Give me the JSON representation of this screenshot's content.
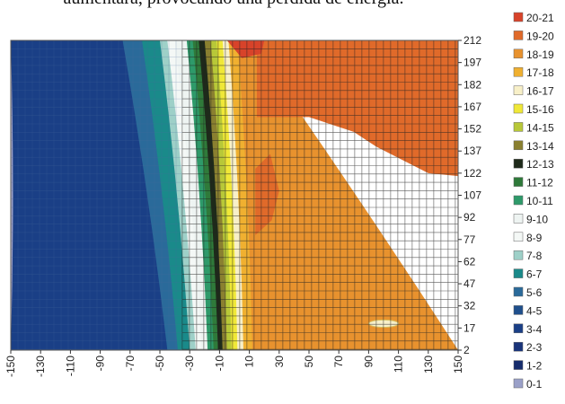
{
  "caption": "aumentará, provocando una pérdida de energía.",
  "chart_data": {
    "type": "heatmap",
    "title": "",
    "xlabel": "",
    "ylabel": "",
    "x_ticks": [
      -150,
      -130,
      -110,
      -90,
      -70,
      -50,
      -30,
      -10,
      10,
      30,
      50,
      70,
      90,
      110,
      130,
      150
    ],
    "y_ticks": [
      2,
      17,
      32,
      47,
      62,
      77,
      92,
      107,
      122,
      137,
      152,
      167,
      182,
      197,
      212
    ],
    "xlim": [
      -150,
      150
    ],
    "ylim": [
      2,
      212
    ],
    "grid_over_region": {
      "x_from": -35,
      "x_to": 150
    },
    "legend_position": "right",
    "legend": [
      {
        "label": "20-21",
        "color": "#d8432a"
      },
      {
        "label": "19-20",
        "color": "#e06a2a"
      },
      {
        "label": "18-19",
        "color": "#e8922e"
      },
      {
        "label": "17-18",
        "color": "#f0b030"
      },
      {
        "label": "16-17",
        "color": "#f8f0c8"
      },
      {
        "label": "15-16",
        "color": "#f0e838"
      },
      {
        "label": "14-15",
        "color": "#b8c838"
      },
      {
        "label": "13-14",
        "color": "#8a8030"
      },
      {
        "label": "12-13",
        "color": "#1e2a1a"
      },
      {
        "label": "11-12",
        "color": "#2f7a3a"
      },
      {
        "label": "10-11",
        "color": "#2e9a6a"
      },
      {
        "label": "9-10",
        "color": "#eef4f2"
      },
      {
        "label": "8-9",
        "color": "#f4f8f6"
      },
      {
        "label": "7-8",
        "color": "#9ed0c8"
      },
      {
        "label": "6-7",
        "color": "#1a8a8a"
      },
      {
        "label": "5-6",
        "color": "#2a6a9a"
      },
      {
        "label": "4-5",
        "color": "#1f4f8c"
      },
      {
        "label": "3-4",
        "color": "#1a3f86"
      },
      {
        "label": "2-3",
        "color": "#19347a"
      },
      {
        "label": "1-2",
        "color": "#162c6c"
      },
      {
        "label": "0-1",
        "color": "#9aa0c8"
      }
    ],
    "bands": [
      {
        "range": "0-1",
        "x_at_bottom": -150,
        "x_at_top": -150
      },
      {
        "range": "2-3",
        "x_at_bottom": -150,
        "x_at_top": -150
      },
      {
        "range": "3-4",
        "x_at_bottom": -45,
        "x_at_top": -75
      },
      {
        "range": "5-6",
        "x_at_bottom": -38,
        "x_at_top": -62
      },
      {
        "range": "6-7",
        "x_at_bottom": -30,
        "x_at_top": -50
      },
      {
        "range": "7-8",
        "x_at_bottom": -26,
        "x_at_top": -45
      },
      {
        "range": "8-9",
        "x_at_bottom": -22,
        "x_at_top": -40
      },
      {
        "range": "9-10",
        "x_at_bottom": -18,
        "x_at_top": -32
      },
      {
        "range": "10-11",
        "x_at_bottom": -14,
        "x_at_top": -28
      },
      {
        "range": "11-12",
        "x_at_bottom": -11,
        "x_at_top": -24
      },
      {
        "range": "12-13",
        "x_at_bottom": -8,
        "x_at_top": -20
      },
      {
        "range": "13-14",
        "x_at_bottom": -5,
        "x_at_top": -16
      },
      {
        "range": "14-15",
        "x_at_bottom": -2,
        "x_at_top": -12
      },
      {
        "range": "15-16",
        "x_at_bottom": 2,
        "x_at_top": -8
      },
      {
        "range": "16-17",
        "x_at_bottom": 6,
        "x_at_top": -4
      },
      {
        "range": "17-18",
        "x_at_bottom": 12,
        "x_at_top": 2
      },
      {
        "range": "18-19",
        "x_at_bottom": 150,
        "x_at_top": 10
      }
    ],
    "regions_19_20": [
      [
        [
          15,
          160
        ],
        [
          50,
          160
        ],
        [
          80,
          150
        ],
        [
          95,
          140
        ],
        [
          130,
          122
        ],
        [
          150,
          120
        ],
        [
          150,
          212
        ],
        [
          15,
          212
        ]
      ],
      [
        [
          14,
          125
        ],
        [
          24,
          135
        ],
        [
          30,
          110
        ],
        [
          25,
          90
        ],
        [
          14,
          80
        ]
      ]
    ],
    "regions_20_21": [
      [
        [
          -5,
          212
        ],
        [
          20,
          212
        ],
        [
          18,
          203
        ],
        [
          5,
          200
        ]
      ]
    ],
    "spot_16_17": {
      "x": 100,
      "y": 20,
      "rx": 10,
      "ry": 2.5
    }
  }
}
